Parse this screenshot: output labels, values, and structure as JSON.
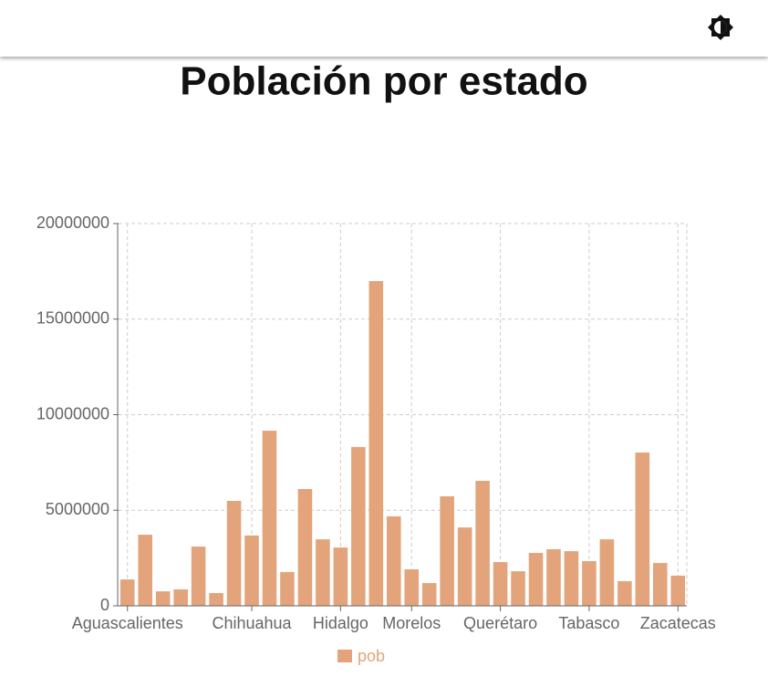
{
  "chart_data": {
    "type": "bar",
    "title": "Población por estado",
    "categories": [
      "Aguascalientes",
      null,
      null,
      null,
      null,
      null,
      null,
      "Chihuahua",
      null,
      null,
      null,
      null,
      "Hidalgo",
      null,
      null,
      null,
      "Morelos",
      null,
      null,
      null,
      null,
      "Querétaro",
      null,
      null,
      null,
      null,
      "Tabasco",
      null,
      null,
      null,
      null,
      "Zacatecas"
    ],
    "series": [
      {
        "name": "pob",
        "color": "#e3a47b",
        "values": [
          1380000,
          3720000,
          760000,
          860000,
          3100000,
          670000,
          5490000,
          3680000,
          9160000,
          1770000,
          6110000,
          3480000,
          3050000,
          8310000,
          16990000,
          4680000,
          1910000,
          1190000,
          5730000,
          4100000,
          6540000,
          2290000,
          1810000,
          2770000,
          2960000,
          2860000,
          2340000,
          3480000,
          1290000,
          8020000,
          2240000,
          1580000
        ]
      }
    ],
    "ylim": [
      0,
      20000000
    ],
    "yticks": [
      0,
      5000000,
      10000000,
      15000000,
      20000000
    ],
    "grid": true
  }
}
